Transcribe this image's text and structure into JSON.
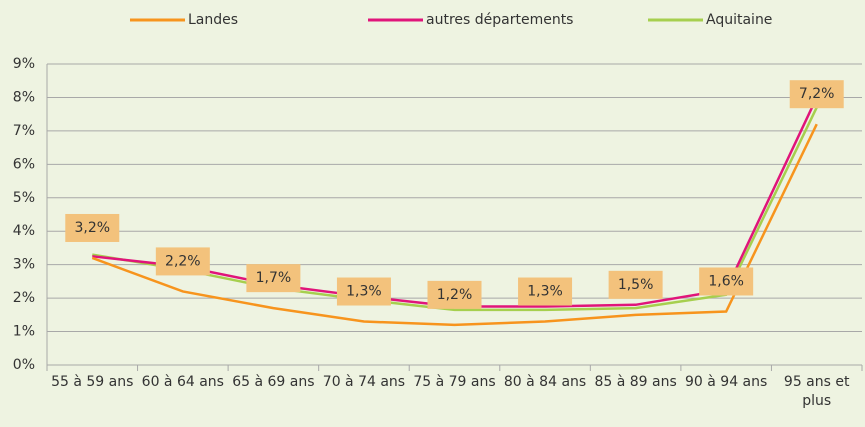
{
  "chart_data": {
    "type": "line",
    "categories": [
      "55 à 59 ans",
      "60 à 64 ans",
      "65 à 69 ans",
      "70 à 74 ans",
      "75 à 79 ans",
      "80 à 84 ans",
      "85 à 89 ans",
      "90 à 94 ans",
      "95 ans et plus"
    ],
    "series": [
      {
        "name": "Landes",
        "color": "#f7941d",
        "values": [
          3.2,
          2.2,
          1.7,
          1.3,
          1.2,
          1.3,
          1.5,
          1.6,
          7.2
        ],
        "value_labels": [
          "3,2%",
          "2,2%",
          "1,7%",
          "1,3%",
          "1,2%",
          "1,3%",
          "1,5%",
          "1,6%",
          "7,2%"
        ]
      },
      {
        "name": "autres départements",
        "color": "#e0147a",
        "values": [
          3.25,
          2.95,
          2.4,
          2.05,
          1.75,
          1.75,
          1.8,
          2.25,
          8.0
        ]
      },
      {
        "name": "Aquitaine",
        "color": "#a6cf4e",
        "values": [
          3.3,
          2.85,
          2.3,
          1.95,
          1.65,
          1.65,
          1.7,
          2.1,
          7.7
        ]
      }
    ],
    "ylim": [
      0,
      9
    ],
    "yticks": [
      {
        "value": 0,
        "label": "0%"
      },
      {
        "value": 1,
        "label": "1%"
      },
      {
        "value": 2,
        "label": "2%"
      },
      {
        "value": 3,
        "label": "3%"
      },
      {
        "value": 4,
        "label": "4%"
      },
      {
        "value": 5,
        "label": "5%"
      },
      {
        "value": 6,
        "label": "6%"
      },
      {
        "value": 7,
        "label": "7%"
      },
      {
        "value": 8,
        "label": "8%"
      },
      {
        "value": 9,
        "label": "9%"
      }
    ],
    "grid": true,
    "legend": "top"
  }
}
